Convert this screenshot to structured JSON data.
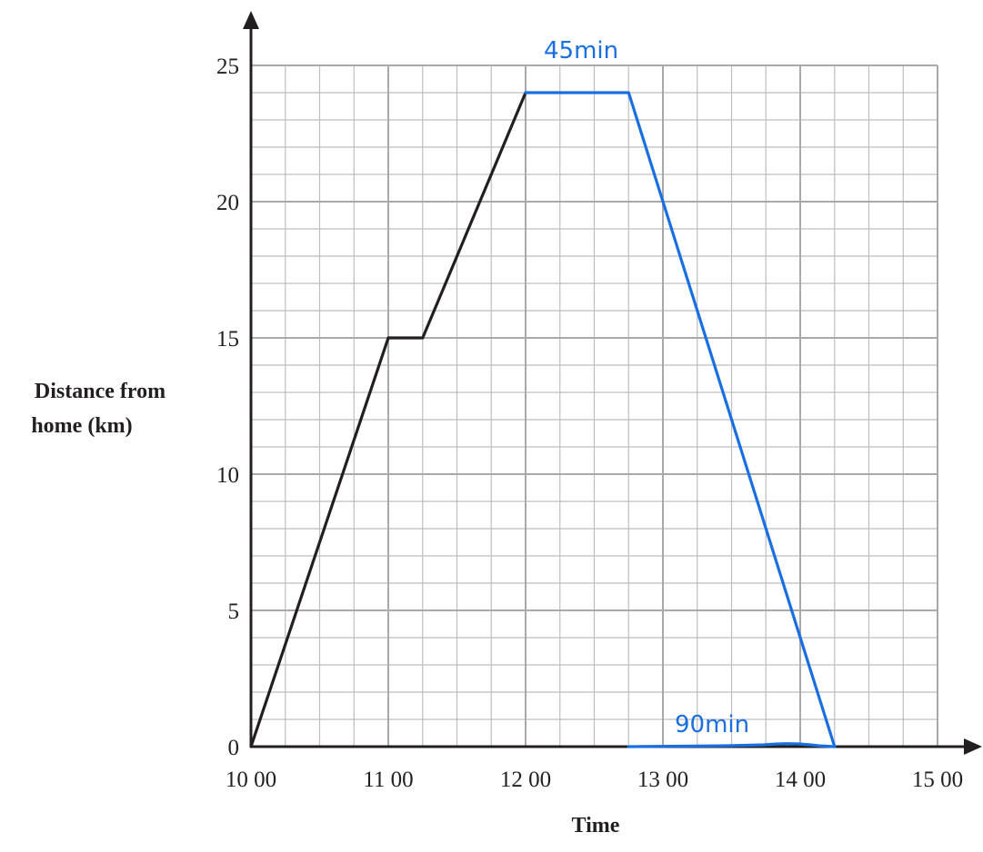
{
  "chart_data": {
    "type": "line",
    "title": "",
    "xlabel": "Time",
    "ylabel": [
      "Distance from",
      "home (km)"
    ],
    "x_tick_labels": [
      "10 00",
      "11 00",
      "12 00",
      "13 00",
      "14 00",
      "15 00"
    ],
    "y_tick_labels": [
      "0",
      "5",
      "10",
      "15",
      "20",
      "25"
    ],
    "xlim": [
      "10:00",
      "15:00"
    ],
    "ylim": [
      0,
      25
    ],
    "grid": true,
    "series": [
      {
        "color": "#231f20",
        "points": [
          {
            "x": "10:00",
            "y": 0
          },
          {
            "x": "11:00",
            "y": 15
          },
          {
            "x": "11:15",
            "y": 15
          },
          {
            "x": "12:00",
            "y": 24
          }
        ]
      },
      {
        "color": "#1a6fe0",
        "points": [
          {
            "x": "12:00",
            "y": 24
          },
          {
            "x": "12:45",
            "y": 24
          },
          {
            "x": "14:15",
            "y": 0
          }
        ]
      }
    ],
    "annotations": [
      {
        "text": "45min",
        "color": "#1a6fe0"
      },
      {
        "text": "90min",
        "color": "#1a6fe0"
      }
    ]
  }
}
